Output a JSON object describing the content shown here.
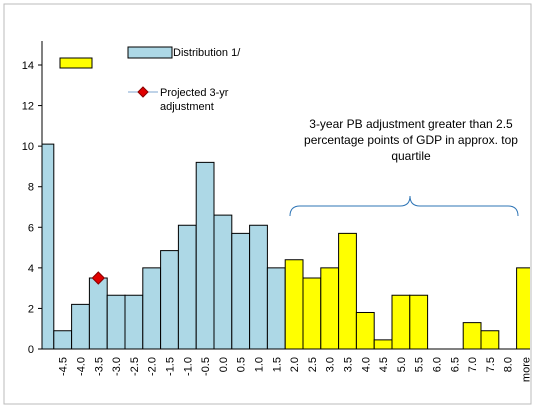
{
  "chart_data": {
    "type": "bar",
    "categories": [
      null,
      "-4.5",
      "-4.0",
      "-3.5",
      "-3.0",
      "-2.5",
      "-2.0",
      "-1.5",
      "-1.0",
      "-0.5",
      "0.0",
      "0.5",
      "1.0",
      "1.5",
      "2.0",
      "2.5",
      "3.0",
      "3.5",
      "4.0",
      "4.5",
      "5.0",
      "5.5",
      "6.0",
      "6.5",
      "7.0",
      "7.5",
      "8.0",
      "more"
    ],
    "series": [
      {
        "name": "Distribution 1/",
        "color": "#add8e6",
        "values": [
          10.1,
          0.9,
          2.2,
          3.5,
          2.65,
          2.65,
          4.0,
          4.85,
          6.1,
          9.2,
          6.6,
          5.7,
          6.1,
          4.0,
          null,
          null,
          null,
          null,
          null,
          null,
          null,
          null,
          null,
          null,
          null,
          null,
          null,
          null
        ]
      },
      {
        "color": "#ffff00",
        "values": [
          null,
          null,
          null,
          null,
          null,
          null,
          null,
          null,
          null,
          null,
          null,
          null,
          null,
          null,
          4.4,
          3.5,
          4.0,
          5.7,
          1.8,
          0.45,
          2.65,
          2.65,
          0,
          0,
          1.3,
          0.9,
          0,
          4.0
        ]
      },
      {
        "name": "Projected 3-yr adjustment",
        "color": "#e00000",
        "style": "marker",
        "values": [
          null,
          null,
          null,
          3.5,
          null,
          null,
          null,
          null,
          null,
          null,
          null,
          null,
          null,
          null,
          null,
          null,
          null,
          null,
          null,
          null,
          null,
          null,
          null,
          null,
          null,
          null,
          null,
          null
        ]
      }
    ],
    "annotation": "3-year PB adjustment greater than 2.5 percentage points of GDP in approx. top quartile",
    "ylim": [
      0,
      14
    ],
    "yticks": [
      0,
      2,
      4,
      6,
      8,
      10,
      12,
      14
    ]
  }
}
